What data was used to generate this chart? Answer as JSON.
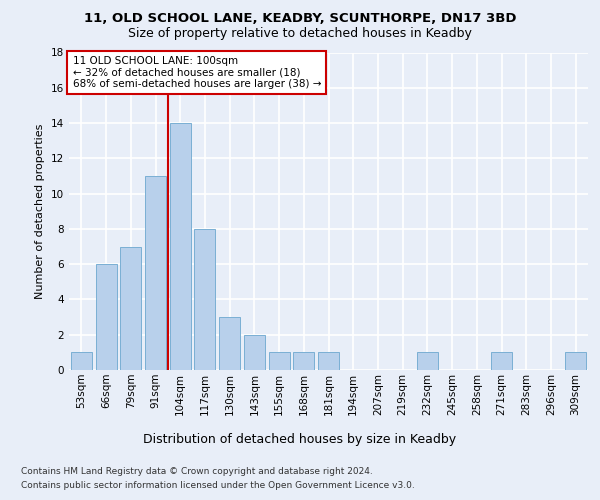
{
  "title1": "11, OLD SCHOOL LANE, KEADBY, SCUNTHORPE, DN17 3BD",
  "title2": "Size of property relative to detached houses in Keadby",
  "xlabel": "Distribution of detached houses by size in Keadby",
  "ylabel": "Number of detached properties",
  "categories": [
    "53sqm",
    "66sqm",
    "79sqm",
    "91sqm",
    "104sqm",
    "117sqm",
    "130sqm",
    "143sqm",
    "155sqm",
    "168sqm",
    "181sqm",
    "194sqm",
    "207sqm",
    "219sqm",
    "232sqm",
    "245sqm",
    "258sqm",
    "271sqm",
    "283sqm",
    "296sqm",
    "309sqm"
  ],
  "values": [
    1,
    6,
    7,
    11,
    14,
    8,
    3,
    2,
    1,
    1,
    1,
    0,
    0,
    0,
    1,
    0,
    0,
    1,
    0,
    0,
    1
  ],
  "bar_color": "#b8d0eb",
  "bar_edge_color": "#7aafd4",
  "annotation_text": "11 OLD SCHOOL LANE: 100sqm\n← 32% of detached houses are smaller (18)\n68% of semi-detached houses are larger (38) →",
  "annotation_box_color": "#ffffff",
  "annotation_box_edge": "#cc0000",
  "vline_color": "#cc0000",
  "vline_x": 3.5,
  "ylim": [
    0,
    18
  ],
  "yticks": [
    0,
    2,
    4,
    6,
    8,
    10,
    12,
    14,
    16,
    18
  ],
  "footer1": "Contains HM Land Registry data © Crown copyright and database right 2024.",
  "footer2": "Contains public sector information licensed under the Open Government Licence v3.0.",
  "background_color": "#e8eef8",
  "plot_background": "#e8eef8",
  "grid_color": "#ffffff",
  "title1_fontsize": 9.5,
  "title2_fontsize": 9,
  "ylabel_fontsize": 8,
  "xlabel_fontsize": 9,
  "tick_fontsize": 7.5,
  "ann_fontsize": 7.5,
  "footer_fontsize": 6.5
}
